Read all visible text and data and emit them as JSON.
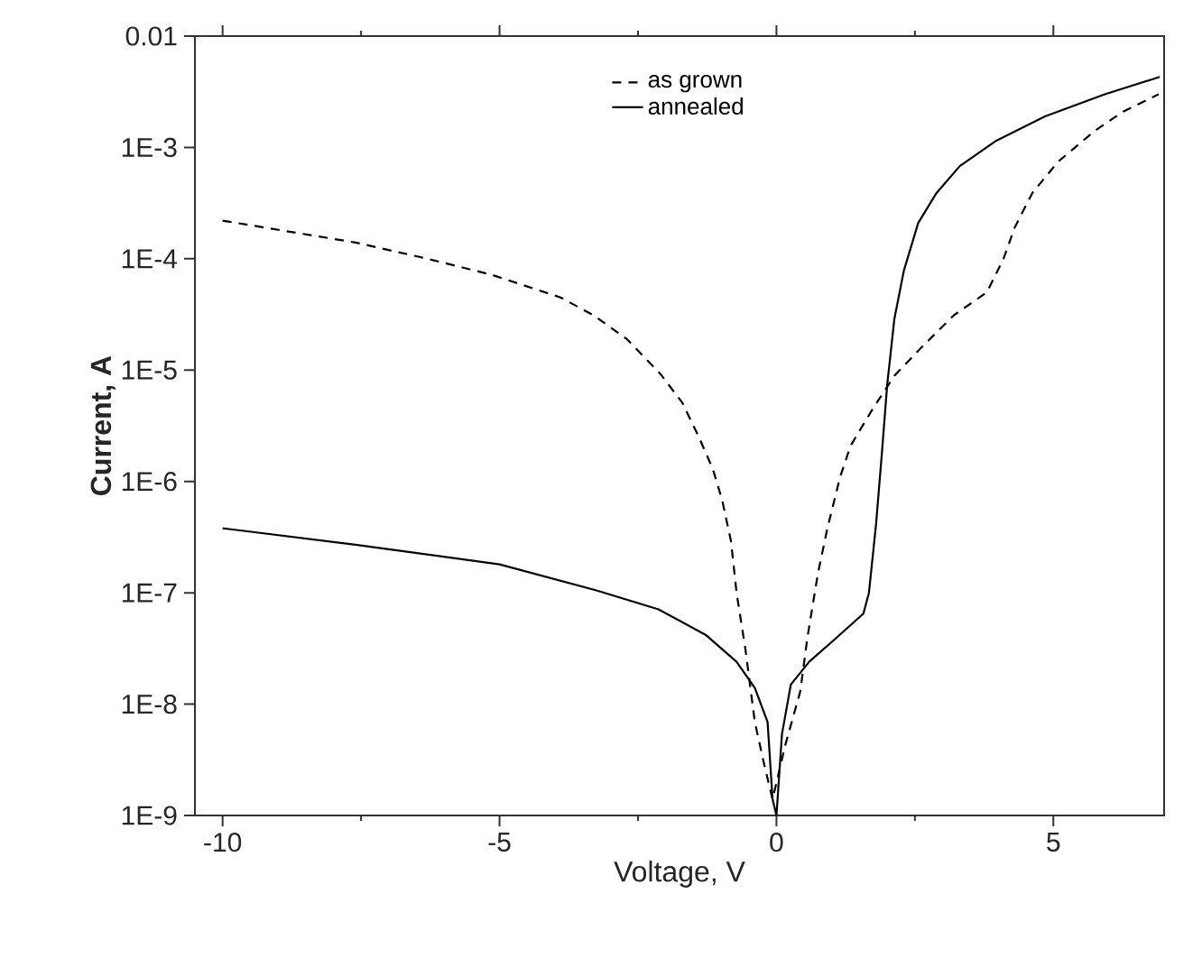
{
  "chart_data": {
    "type": "line",
    "xlabel": "Voltage, V",
    "ylabel": "Current, A",
    "log": "y",
    "xlim": [
      -10.5,
      7
    ],
    "ylim": [
      1e-09,
      0.01
    ],
    "xticks": [
      -10,
      -5,
      0,
      5
    ],
    "yticks": [
      {
        "value": 0.01,
        "label": "0.01"
      },
      {
        "value": 0.001,
        "label": "1E-3"
      },
      {
        "value": 0.0001,
        "label": "1E-4"
      },
      {
        "value": 1e-05,
        "label": "1E-5"
      },
      {
        "value": 1e-06,
        "label": "1E-6"
      },
      {
        "value": 1e-07,
        "label": "1E-7"
      },
      {
        "value": 1e-08,
        "label": "1E-8"
      },
      {
        "value": 1e-09,
        "label": "1E-9"
      }
    ],
    "grid": false,
    "legend": "top",
    "marker": "none",
    "series": [
      {
        "name": "as grown",
        "color": "#000000",
        "line_style": "dashed",
        "x": [
          -10,
          -7.6,
          -6.3,
          -5.15,
          -3.9,
          -3.3,
          -2.7,
          -2.1,
          -1.7,
          -1.4,
          -1.15,
          -0.98,
          -0.82,
          -0.72,
          -0.56,
          -0.39,
          -0.23,
          -0.07,
          0.16,
          0.43,
          0.56,
          0.75,
          0.92,
          1.15,
          1.34,
          1.74,
          2.13,
          2.62,
          3.2,
          3.8,
          4.1,
          4.3,
          4.62,
          5.08,
          5.74,
          6.26,
          6.9
        ],
        "values": [
          0.00022,
          0.00014,
          0.0001,
          7.2e-05,
          4.5e-05,
          3.1e-05,
          1.9e-05,
          9.3e-06,
          5.1e-06,
          2.5e-06,
          1.3e-06,
          6.8e-07,
          2.9e-07,
          1e-07,
          3.1e-08,
          6.9e-09,
          3e-09,
          1.4e-09,
          4.3e-09,
          1.3e-08,
          4e-08,
          1.5e-07,
          3.8e-07,
          1.1e-06,
          2.1e-06,
          4.5e-06,
          8.9e-06,
          1.6e-05,
          3.1e-05,
          5e-05,
          0.0001,
          0.00019,
          0.00039,
          0.00074,
          0.0014,
          0.0021,
          0.003
        ]
      },
      {
        "name": "annealed",
        "color": "#000000",
        "line_style": "solid",
        "x": [
          -10,
          -7.6,
          -5,
          -3.25,
          -2.13,
          -1.28,
          -0.72,
          -0.39,
          -0.16,
          -0.07,
          0,
          0.1,
          0.26,
          0.59,
          1.02,
          1.57,
          1.67,
          1.8,
          1.9,
          2.0,
          2.13,
          2.3,
          2.56,
          2.89,
          3.31,
          3.97,
          4.85,
          5.93,
          6.92
        ],
        "values": [
          3.8e-07,
          2.7e-07,
          1.8e-07,
          1.05e-07,
          7.1e-08,
          4.2e-08,
          2.4e-08,
          1.4e-08,
          6.9e-09,
          1.4e-09,
          1e-09,
          5.4e-09,
          1.5e-08,
          2.4e-08,
          3.7e-08,
          6.5e-08,
          1e-07,
          4.2e-07,
          1.7e-06,
          7.4e-06,
          2.9e-05,
          7.8e-05,
          0.00021,
          0.00039,
          0.00068,
          0.00115,
          0.0019,
          0.003,
          0.0043
        ]
      }
    ]
  }
}
